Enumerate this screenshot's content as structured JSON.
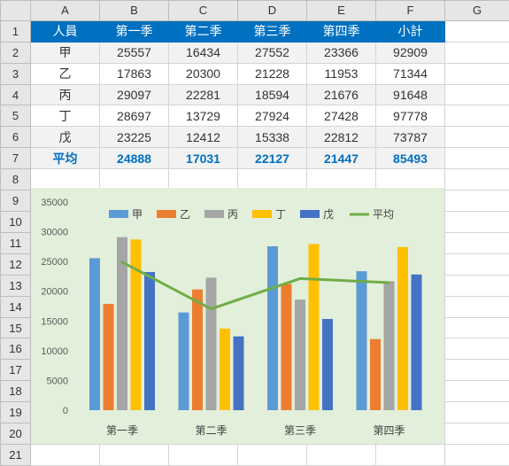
{
  "columns": [
    "A",
    "B",
    "C",
    "D",
    "E",
    "F",
    "G"
  ],
  "rows": [
    "1",
    "2",
    "3",
    "4",
    "5",
    "6",
    "7",
    "8",
    "9",
    "10",
    "11",
    "12",
    "13",
    "14",
    "15",
    "16",
    "17",
    "18",
    "19",
    "20",
    "21"
  ],
  "table": {
    "header": [
      "人員",
      "第一季",
      "第二季",
      "第三季",
      "第四季",
      "小計"
    ],
    "data": [
      [
        "甲",
        "25557",
        "16434",
        "27552",
        "23366",
        "92909"
      ],
      [
        "乙",
        "17863",
        "20300",
        "21228",
        "11953",
        "71344"
      ],
      [
        "丙",
        "29097",
        "22281",
        "18594",
        "21676",
        "91648"
      ],
      [
        "丁",
        "28697",
        "13729",
        "27924",
        "27428",
        "97778"
      ],
      [
        "戊",
        "23225",
        "12412",
        "15338",
        "22812",
        "73787"
      ]
    ],
    "avg": [
      "平均",
      "24888",
      "17031",
      "22127",
      "21447",
      "85493"
    ]
  },
  "chart_data": {
    "type": "bar",
    "categories": [
      "第一季",
      "第二季",
      "第三季",
      "第四季"
    ],
    "series": [
      {
        "name": "甲",
        "values": [
          25557,
          16434,
          27552,
          23366
        ],
        "color": "#5b9bd5"
      },
      {
        "name": "乙",
        "values": [
          17863,
          20300,
          21228,
          11953
        ],
        "color": "#ed7d31"
      },
      {
        "name": "丙",
        "values": [
          29097,
          22281,
          18594,
          21676
        ],
        "color": "#a5a5a5"
      },
      {
        "name": "丁",
        "values": [
          28697,
          13729,
          27924,
          27428
        ],
        "color": "#ffc000"
      },
      {
        "name": "戊",
        "values": [
          23225,
          12412,
          15338,
          22812
        ],
        "color": "#4472c4"
      }
    ],
    "line": {
      "name": "平均",
      "values": [
        24888,
        17031,
        22127,
        21447
      ],
      "color": "#70ad47"
    },
    "ylim": [
      0,
      35000
    ],
    "yticks": [
      "0",
      "5000",
      "10000",
      "15000",
      "20000",
      "25000",
      "30000",
      "35000"
    ],
    "legend": "top",
    "grid": false,
    "background": "#e2efda"
  }
}
